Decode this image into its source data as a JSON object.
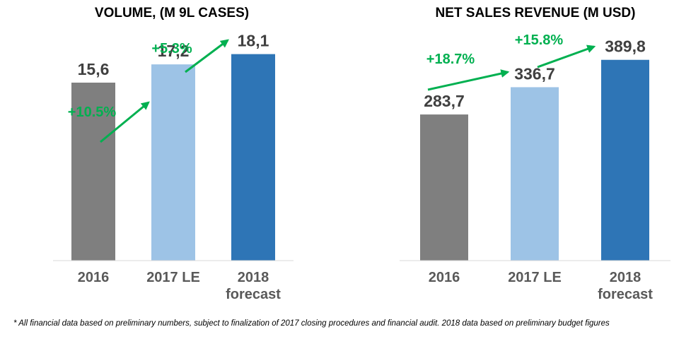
{
  "chart_data": [
    {
      "type": "bar",
      "title": "VOLUME, (M 9L CASES)",
      "categories": [
        [
          "2016"
        ],
        [
          "2017 LE"
        ],
        [
          "2018",
          "forecast"
        ]
      ],
      "values": [
        15.6,
        17.2,
        18.1
      ],
      "value_labels": [
        "15,6",
        "17,2",
        "18,1"
      ],
      "bar_colors": [
        "#7f7f7f",
        "#9dc3e6",
        "#2e75b6"
      ],
      "growth": [
        "+10.5%",
        "+5.3%"
      ],
      "growth_color": "#00b050",
      "ylim": [
        0,
        19.5
      ],
      "grid": false,
      "legend": "none"
    },
    {
      "type": "bar",
      "title": "NET SALES REVENUE (M USD)",
      "categories": [
        [
          "2016"
        ],
        [
          "2017 LE"
        ],
        [
          "2018",
          "forecast"
        ]
      ],
      "values": [
        283.7,
        336.7,
        389.8
      ],
      "value_labels": [
        "283,7",
        "336,7",
        "389,8"
      ],
      "bar_colors": [
        "#7f7f7f",
        "#9dc3e6",
        "#2e75b6"
      ],
      "growth": [
        "+18.7%",
        "+15.8%"
      ],
      "growth_color": "#00b050",
      "ylim": [
        0,
        410
      ],
      "grid": false,
      "legend": "none"
    }
  ],
  "footnote": "* All financial data based on preliminary numbers, subject to finalization of 2017 closing procedures and financial audit. 2018 data based on preliminary budget figures"
}
